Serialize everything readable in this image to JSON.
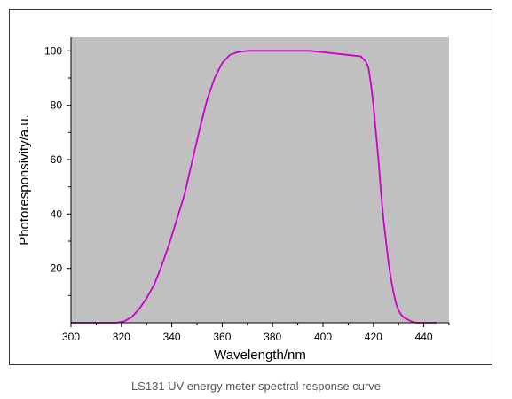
{
  "caption": "LS131 UV energy meter spectral response curve",
  "colors": {
    "plot_bg": "#c0c0c0",
    "line": "#cc00cc",
    "axis": "#000000"
  },
  "chart_data": {
    "type": "line",
    "title": "",
    "xlabel": "Wavelength/nm",
    "ylabel": "Photoresponsivity/a.u.",
    "xlim": [
      300,
      450
    ],
    "ylim": [
      0,
      105
    ],
    "xticks": [
      300,
      320,
      340,
      360,
      380,
      400,
      420,
      440
    ],
    "yticks": [
      20,
      40,
      60,
      80,
      100
    ],
    "grid": false,
    "series": [
      {
        "x": [
          300,
          310,
          318,
          321,
          324,
          327,
          330,
          333,
          336,
          339,
          342,
          345,
          348,
          351,
          354,
          357,
          360,
          363,
          366,
          370,
          375,
          380,
          385,
          390,
          395,
          400,
          405,
          410,
          415,
          417,
          418,
          419,
          420,
          421,
          422,
          423,
          424,
          425,
          426,
          427,
          428,
          429,
          430,
          431,
          432,
          433,
          434,
          435,
          436,
          437,
          438,
          440,
          445
        ],
        "y": [
          0,
          0,
          0,
          0.5,
          2,
          5,
          9,
          14,
          21,
          29,
          38,
          47,
          59,
          71,
          82,
          90,
          95.5,
          98.5,
          99.5,
          100,
          100,
          100,
          100,
          100,
          100,
          99.5,
          99,
          98.5,
          98,
          96,
          94,
          88,
          80,
          70,
          60,
          48,
          38,
          30,
          22,
          16,
          11,
          7,
          4.5,
          3,
          2,
          1.5,
          1,
          0.5,
          0.2,
          0,
          0,
          0,
          0
        ]
      }
    ]
  }
}
